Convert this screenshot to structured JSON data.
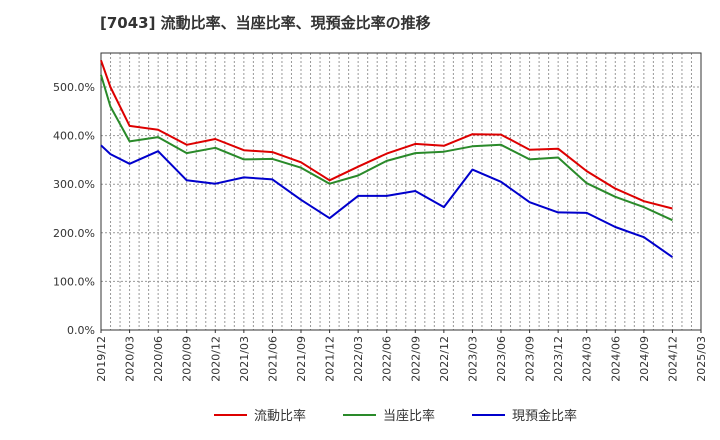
{
  "chart_data": {
    "type": "line",
    "title": "[7043]  流動比率、当座比率、現預金比率の推移",
    "xlabel": "",
    "ylabel": "",
    "ylim": [
      0,
      570
    ],
    "yticks": [
      0,
      100,
      200,
      300,
      400,
      500
    ],
    "ytick_labels": [
      "0.0%",
      "100.0%",
      "200.0%",
      "300.0%",
      "400.0%",
      "500.0%"
    ],
    "x_tick_labels": [
      "2019/12",
      "2020/03",
      "2020/06",
      "2020/09",
      "2020/12",
      "2021/03",
      "2021/06",
      "2021/09",
      "2021/12",
      "2022/03",
      "2022/06",
      "2022/09",
      "2022/12",
      "2023/03",
      "2023/06",
      "2023/09",
      "2023/12",
      "2024/03",
      "2024/06",
      "2024/09",
      "2024/12",
      "2025/03"
    ],
    "x_min": 0,
    "x_max": 21,
    "grid": true,
    "legend_position": "bottom",
    "series": [
      {
        "name": "流動比率",
        "color": "#dd0000",
        "x": [
          0,
          0.33,
          1,
          2,
          3,
          4,
          5,
          6,
          7,
          8,
          9,
          10,
          11,
          12,
          13,
          14,
          15,
          16,
          17,
          18,
          19,
          20
        ],
        "values": [
          555,
          500,
          420,
          412,
          381,
          393,
          370,
          366,
          345,
          308,
          336,
          363,
          383,
          379,
          403,
          402,
          371,
          373,
          327,
          291,
          265,
          250
        ]
      },
      {
        "name": "当座比率",
        "color": "#2a8a2a",
        "x": [
          0,
          0.33,
          1,
          2,
          3,
          4,
          5,
          6,
          7,
          8,
          9,
          10,
          11,
          12,
          13,
          14,
          15,
          16,
          17,
          18,
          19,
          20
        ],
        "values": [
          525,
          460,
          388,
          397,
          364,
          375,
          351,
          352,
          334,
          301,
          318,
          348,
          364,
          367,
          378,
          381,
          351,
          355,
          302,
          274,
          253,
          226
        ]
      },
      {
        "name": "現預金比率",
        "color": "#0000cc",
        "x": [
          0,
          0.33,
          1,
          2,
          3,
          4,
          5,
          6,
          7,
          8,
          9,
          10,
          11,
          12,
          13,
          14,
          15,
          16,
          17,
          18,
          19,
          20
        ],
        "values": [
          380,
          362,
          342,
          368,
          308,
          301,
          314,
          310,
          268,
          230,
          276,
          276,
          286,
          253,
          330,
          305,
          263,
          242,
          241,
          212,
          191,
          150
        ]
      }
    ]
  }
}
